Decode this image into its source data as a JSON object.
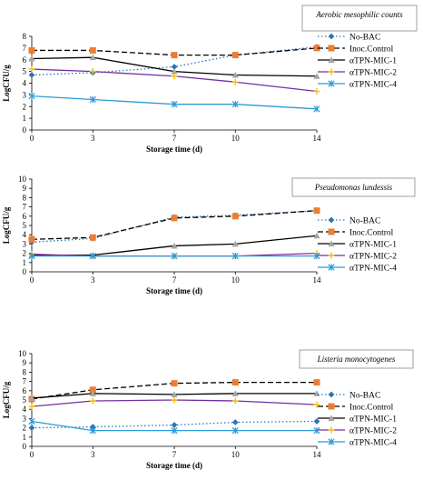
{
  "chart_data": [
    {
      "type": "line",
      "title": "Aerobic mesophilic counts",
      "xlabel": "Storage time (d)",
      "ylabel": "LogCFU/g",
      "x": [
        0,
        3,
        7,
        10,
        14
      ],
      "x_ticks": [
        "0",
        "3",
        "7",
        "10",
        "14"
      ],
      "ylim": [
        0,
        8
      ],
      "y_ticks": [
        "0",
        "1",
        "2",
        "3",
        "4",
        "5",
        "6",
        "7",
        "8"
      ],
      "grid": false,
      "legend": "right",
      "series": [
        {
          "name": "No-BAC",
          "values": [
            4.7,
            4.9,
            5.4,
            6.4,
            7.1
          ]
        },
        {
          "name": "Inoc.Control",
          "values": [
            6.8,
            6.8,
            6.4,
            6.4,
            7.0
          ]
        },
        {
          "name": "αTPN-MIC-1",
          "values": [
            6.1,
            6.2,
            5.0,
            4.7,
            4.6
          ]
        },
        {
          "name": "αTPN-MIC-2",
          "values": [
            5.2,
            5.0,
            4.6,
            4.1,
            3.3
          ]
        },
        {
          "name": "αTPN-MIC-4",
          "values": [
            2.9,
            2.6,
            2.2,
            2.2,
            1.8
          ]
        }
      ]
    },
    {
      "type": "line",
      "title": "Pseudomonas lundessis",
      "xlabel": "Storage time (d)",
      "ylabel": "LogCFU/g",
      "x": [
        0,
        3,
        7,
        10,
        14
      ],
      "x_ticks": [
        "0",
        "3",
        "7",
        "10",
        "14"
      ],
      "ylim": [
        0,
        10
      ],
      "y_ticks": [
        "0",
        "1",
        "2",
        "3",
        "4",
        "5",
        "6",
        "7",
        "8",
        "9",
        "10"
      ],
      "grid": false,
      "legend": "right",
      "series": [
        {
          "name": "No-BAC",
          "values": [
            3.2,
            3.6,
            5.9,
            6.1,
            6.6
          ]
        },
        {
          "name": "Inoc.Control",
          "values": [
            3.5,
            3.7,
            5.8,
            6.0,
            6.6
          ]
        },
        {
          "name": "αTPN-MIC-1",
          "values": [
            1.8,
            1.8,
            2.8,
            3.0,
            3.9
          ]
        },
        {
          "name": "αTPN-MIC-2",
          "values": [
            1.9,
            1.7,
            1.7,
            1.7,
            2.0
          ]
        },
        {
          "name": "αTPN-MIC-4",
          "values": [
            1.7,
            1.7,
            1.7,
            1.7,
            1.7
          ]
        }
      ]
    },
    {
      "type": "line",
      "title": "Listeria monocytogenes",
      "xlabel": "Storage time (d)",
      "ylabel": "LogCFU/g",
      "x": [
        0,
        3,
        7,
        10,
        14
      ],
      "x_ticks": [
        "0",
        "3",
        "7",
        "10",
        "14"
      ],
      "ylim": [
        0,
        10
      ],
      "y_ticks": [
        "0",
        "1",
        "2",
        "3",
        "4",
        "5",
        "6",
        "7",
        "8",
        "9",
        "10"
      ],
      "grid": false,
      "legend": "right",
      "series": [
        {
          "name": "No-BAC",
          "values": [
            2.0,
            2.1,
            2.3,
            2.6,
            2.7
          ]
        },
        {
          "name": "Inoc.Control",
          "values": [
            5.1,
            6.1,
            6.8,
            6.9,
            6.9
          ]
        },
        {
          "name": "αTPN-MIC-1",
          "values": [
            5.2,
            5.7,
            5.6,
            5.7,
            5.7
          ]
        },
        {
          "name": "αTPN-MIC-2",
          "values": [
            4.3,
            4.9,
            5.0,
            4.9,
            4.5
          ]
        },
        {
          "name": "αTPN-MIC-4",
          "values": [
            2.7,
            1.7,
            1.7,
            1.7,
            1.7
          ]
        }
      ]
    }
  ],
  "styles": [
    {
      "color": "#2e75b6",
      "dash": "1.5,2.5",
      "marker": "diamond"
    },
    {
      "color": "#000000",
      "dash": "6,3",
      "marker": "square",
      "marker_color": "#ed7d31"
    },
    {
      "color": "#000000",
      "dash": "",
      "marker": "triangle",
      "marker_color": "#a5a5a5"
    },
    {
      "color": "#7030a0",
      "dash": "",
      "marker": "plus",
      "marker_color": "#ffc000"
    },
    {
      "color": "#2e9bd6",
      "dash": "",
      "marker": "asterisk"
    }
  ]
}
